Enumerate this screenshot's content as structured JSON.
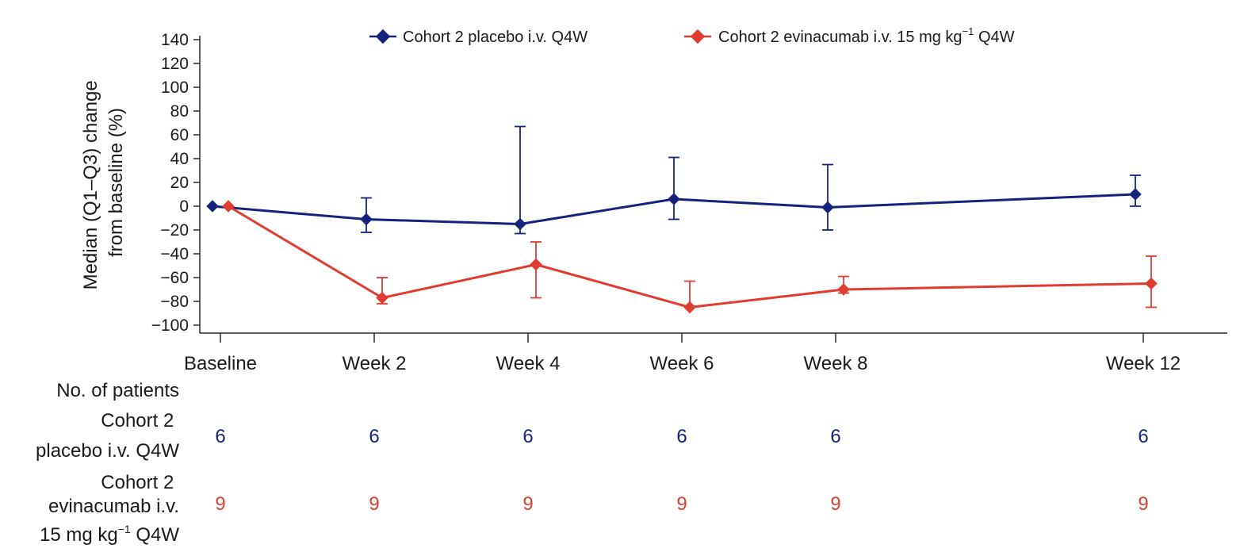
{
  "chart_data": {
    "type": "line",
    "title": "",
    "xlabel": "",
    "ylabel_line1": "Median (Q1–Q3) change",
    "ylabel_line2": "from baseline (%)",
    "ylim": [
      -100,
      140
    ],
    "yticks": [
      140,
      120,
      100,
      80,
      60,
      40,
      20,
      0,
      -20,
      -40,
      -60,
      -80,
      -100
    ],
    "ytick_labels": [
      "140",
      "120",
      "100",
      "80",
      "60",
      "40",
      "20",
      "0",
      "−20",
      "−40",
      "−60",
      "−80",
      "−100"
    ],
    "categories": [
      "Baseline",
      "Week 2",
      "Week 4",
      "Week 6",
      "Week 8",
      "Week 12"
    ],
    "x_weeks": [
      0,
      2,
      4,
      6,
      8,
      12
    ],
    "grid": false,
    "legend_position": "top",
    "series": [
      {
        "name": "Cohort 2 placebo i.v. Q4W",
        "color": "#16237e",
        "median": [
          0,
          -11,
          -15,
          6,
          -1,
          10
        ],
        "q1": [
          0,
          -22,
          -23,
          -11,
          -20,
          0
        ],
        "q3": [
          0,
          7,
          67,
          41,
          35,
          26
        ],
        "errorbars_below": [
          false,
          true,
          true,
          true,
          true,
          true
        ],
        "errorbars_above": [
          false,
          true,
          true,
          true,
          true,
          true
        ]
      },
      {
        "name_prefix": "Cohort 2 evinacumab i.v. 15 mg kg",
        "name_sup": "−1",
        "name_suffix": " Q4W",
        "color": "#e03c31",
        "median": [
          0,
          -77,
          -49,
          -85,
          -70,
          -65
        ],
        "q1": [
          0,
          -82,
          -77,
          -85,
          -73,
          -85
        ],
        "q3": [
          0,
          -60,
          -30,
          -63,
          -59,
          -42
        ],
        "errorbars_below": [
          false,
          true,
          true,
          false,
          true,
          true
        ],
        "errorbars_above": [
          false,
          true,
          true,
          true,
          true,
          true
        ]
      }
    ]
  },
  "patients_table": {
    "title": "No. of patients",
    "rows": [
      {
        "label_line1": "Cohort 2",
        "label_line2": "placebo i.v. Q4W",
        "color": "#16237e",
        "counts": [
          "6",
          "6",
          "6",
          "6",
          "6",
          "6"
        ]
      },
      {
        "label_line1": "Cohort 2",
        "label_line2": "evinacumab i.v.",
        "label_line3_prefix": "15 mg kg",
        "label_line3_sup": "−1",
        "label_line3_suffix": " Q4W",
        "color": "#e03c31",
        "counts": [
          "9",
          "9",
          "9",
          "9",
          "9",
          "9"
        ]
      }
    ]
  }
}
